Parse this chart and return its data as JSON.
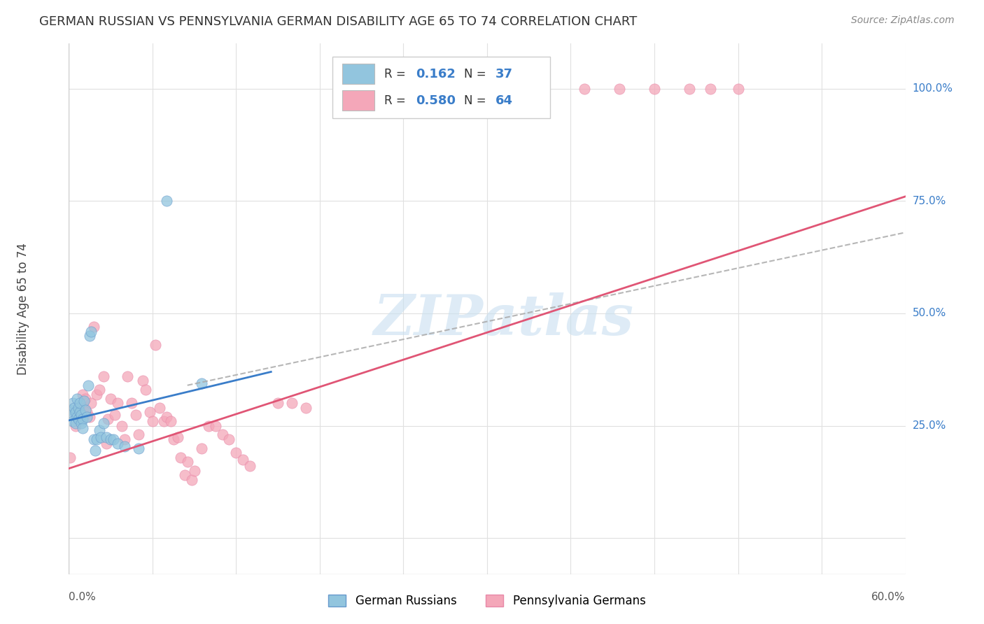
{
  "title": "GERMAN RUSSIAN VS PENNSYLVANIA GERMAN DISABILITY AGE 65 TO 74 CORRELATION CHART",
  "source": "Source: ZipAtlas.com",
  "ylabel": "Disability Age 65 to 74",
  "color_blue": "#92c5de",
  "color_pink": "#f4a7b9",
  "color_blue_line": "#3a7dc9",
  "color_pink_line": "#e05575",
  "background": "#ffffff",
  "grid_color": "#e0e0e0",
  "xmin": 0.0,
  "xmax": 0.6,
  "ymin": -0.08,
  "ymax": 1.1,
  "blue_points": [
    [
      0.001,
      0.285
    ],
    [
      0.002,
      0.275
    ],
    [
      0.003,
      0.26
    ],
    [
      0.003,
      0.3
    ],
    [
      0.004,
      0.29
    ],
    [
      0.005,
      0.255
    ],
    [
      0.005,
      0.28
    ],
    [
      0.006,
      0.27
    ],
    [
      0.006,
      0.31
    ],
    [
      0.007,
      0.265
    ],
    [
      0.007,
      0.29
    ],
    [
      0.008,
      0.28
    ],
    [
      0.008,
      0.3
    ],
    [
      0.009,
      0.275
    ],
    [
      0.009,
      0.255
    ],
    [
      0.01,
      0.265
    ],
    [
      0.01,
      0.245
    ],
    [
      0.011,
      0.305
    ],
    [
      0.012,
      0.285
    ],
    [
      0.013,
      0.27
    ],
    [
      0.014,
      0.34
    ],
    [
      0.015,
      0.45
    ],
    [
      0.016,
      0.46
    ],
    [
      0.018,
      0.22
    ],
    [
      0.019,
      0.195
    ],
    [
      0.02,
      0.22
    ],
    [
      0.022,
      0.24
    ],
    [
      0.023,
      0.225
    ],
    [
      0.025,
      0.255
    ],
    [
      0.027,
      0.225
    ],
    [
      0.03,
      0.22
    ],
    [
      0.032,
      0.22
    ],
    [
      0.035,
      0.21
    ],
    [
      0.04,
      0.205
    ],
    [
      0.05,
      0.2
    ],
    [
      0.07,
      0.75
    ],
    [
      0.095,
      0.345
    ]
  ],
  "pink_points": [
    [
      0.001,
      0.18
    ],
    [
      0.005,
      0.25
    ],
    [
      0.007,
      0.28
    ],
    [
      0.008,
      0.27
    ],
    [
      0.01,
      0.32
    ],
    [
      0.011,
      0.29
    ],
    [
      0.012,
      0.31
    ],
    [
      0.013,
      0.28
    ],
    [
      0.015,
      0.27
    ],
    [
      0.016,
      0.3
    ],
    [
      0.018,
      0.47
    ],
    [
      0.02,
      0.32
    ],
    [
      0.022,
      0.33
    ],
    [
      0.025,
      0.36
    ],
    [
      0.027,
      0.21
    ],
    [
      0.028,
      0.265
    ],
    [
      0.03,
      0.31
    ],
    [
      0.033,
      0.275
    ],
    [
      0.035,
      0.3
    ],
    [
      0.038,
      0.25
    ],
    [
      0.04,
      0.22
    ],
    [
      0.042,
      0.36
    ],
    [
      0.045,
      0.3
    ],
    [
      0.048,
      0.275
    ],
    [
      0.05,
      0.23
    ],
    [
      0.053,
      0.35
    ],
    [
      0.055,
      0.33
    ],
    [
      0.058,
      0.28
    ],
    [
      0.06,
      0.26
    ],
    [
      0.062,
      0.43
    ],
    [
      0.065,
      0.29
    ],
    [
      0.068,
      0.26
    ],
    [
      0.07,
      0.27
    ],
    [
      0.073,
      0.26
    ],
    [
      0.075,
      0.22
    ],
    [
      0.078,
      0.225
    ],
    [
      0.08,
      0.18
    ],
    [
      0.083,
      0.14
    ],
    [
      0.085,
      0.17
    ],
    [
      0.088,
      0.13
    ],
    [
      0.09,
      0.15
    ],
    [
      0.095,
      0.2
    ],
    [
      0.1,
      0.25
    ],
    [
      0.105,
      0.25
    ],
    [
      0.11,
      0.23
    ],
    [
      0.115,
      0.22
    ],
    [
      0.12,
      0.19
    ],
    [
      0.125,
      0.175
    ],
    [
      0.13,
      0.16
    ],
    [
      0.15,
      0.3
    ],
    [
      0.16,
      0.3
    ],
    [
      0.17,
      0.29
    ],
    [
      0.195,
      1.0
    ],
    [
      0.21,
      1.0
    ],
    [
      0.225,
      1.0
    ],
    [
      0.26,
      1.0
    ],
    [
      0.295,
      1.0
    ],
    [
      0.335,
      1.0
    ],
    [
      0.37,
      1.0
    ],
    [
      0.395,
      1.0
    ],
    [
      0.42,
      1.0
    ],
    [
      0.445,
      1.0
    ],
    [
      0.46,
      1.0
    ],
    [
      0.48,
      1.0
    ]
  ],
  "blue_line_x": [
    0.0,
    0.145
  ],
  "blue_line_y": [
    0.262,
    0.37
  ],
  "pink_line_x": [
    0.0,
    0.6
  ],
  "pink_line_y": [
    0.155,
    0.76
  ],
  "dashed_line_x": [
    0.085,
    0.6
  ],
  "dashed_line_y": [
    0.34,
    0.68
  ],
  "ytick_vals": [
    0.0,
    0.25,
    0.5,
    0.75,
    1.0
  ],
  "ytick_labels": [
    "",
    "25.0%",
    "50.0%",
    "75.0%",
    "100.0%"
  ],
  "xtick_vals": [
    0.0,
    0.06,
    0.12,
    0.18,
    0.24,
    0.3,
    0.36,
    0.42,
    0.48,
    0.54,
    0.6
  ],
  "watermark": "ZIPatlas",
  "legend_items": [
    {
      "color": "#92c5de",
      "r": "0.162",
      "n": "37"
    },
    {
      "color": "#f4a7b9",
      "r": "0.580",
      "n": "64"
    }
  ],
  "bottom_legend": [
    "German Russians",
    "Pennsylvania Germans"
  ]
}
